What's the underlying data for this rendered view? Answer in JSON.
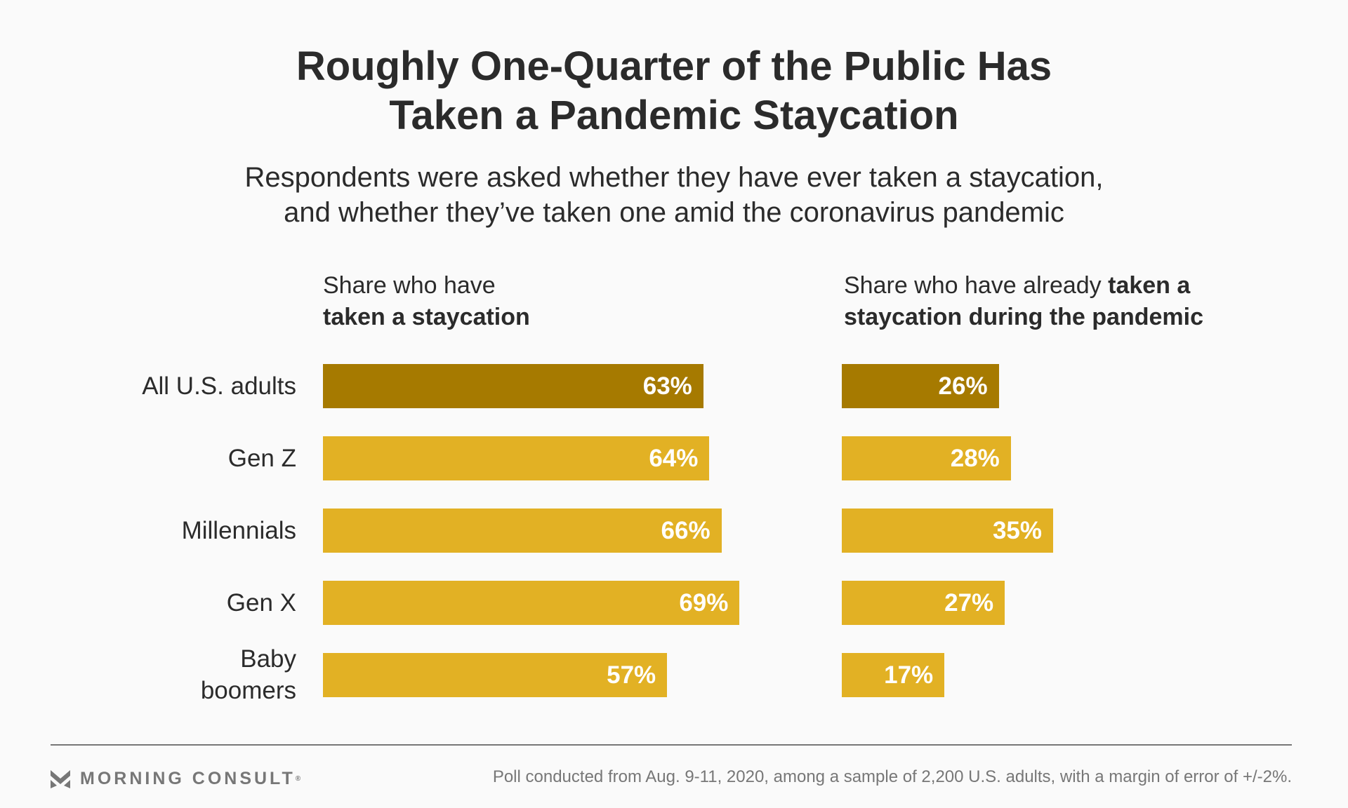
{
  "title": [
    "Roughly One-Quarter of the Public Has",
    "Taken a Pandemic Staycation"
  ],
  "subtitle": [
    "Respondents were asked whether they have ever taken a staycation,",
    "and whether they’ve taken one amid the coronavirus pandemic"
  ],
  "chart_data": [
    {
      "type": "bar",
      "orientation": "horizontal",
      "title_plain": "Share who have",
      "title_bold": "taken a staycation",
      "categories": [
        "All U.S. adults",
        "Gen Z",
        "Millennials",
        "Gen X",
        "Baby boomers"
      ],
      "values": [
        63,
        64,
        66,
        69,
        57
      ],
      "labels": [
        "63%",
        "64%",
        "66%",
        "69%",
        "57%"
      ],
      "xlim": [
        0,
        100
      ]
    },
    {
      "type": "bar",
      "orientation": "horizontal",
      "title_plain": "Share who have already ",
      "title_bold": "taken a staycation during the pandemic",
      "categories": [
        "All U.S. adults",
        "Gen Z",
        "Millennials",
        "Gen X",
        "Baby boomers"
      ],
      "values": [
        26,
        28,
        35,
        27,
        17
      ],
      "labels": [
        "26%",
        "28%",
        "35%",
        "27%",
        "17%"
      ],
      "xlim": [
        0,
        100
      ]
    }
  ],
  "row_labels": [
    [
      "All U.S. adults"
    ],
    [
      "Gen Z"
    ],
    [
      "Millennials"
    ],
    [
      "Gen X"
    ],
    [
      "Baby",
      "boomers"
    ]
  ],
  "colors": {
    "highlight": "#a67a00",
    "bar": "#e2b124"
  },
  "footer": {
    "logo": "MORNING CONSULT",
    "note": "Poll conducted from Aug. 9-11, 2020, among a sample of 2,200 U.S. adults, with a margin of error of +/-2%."
  }
}
